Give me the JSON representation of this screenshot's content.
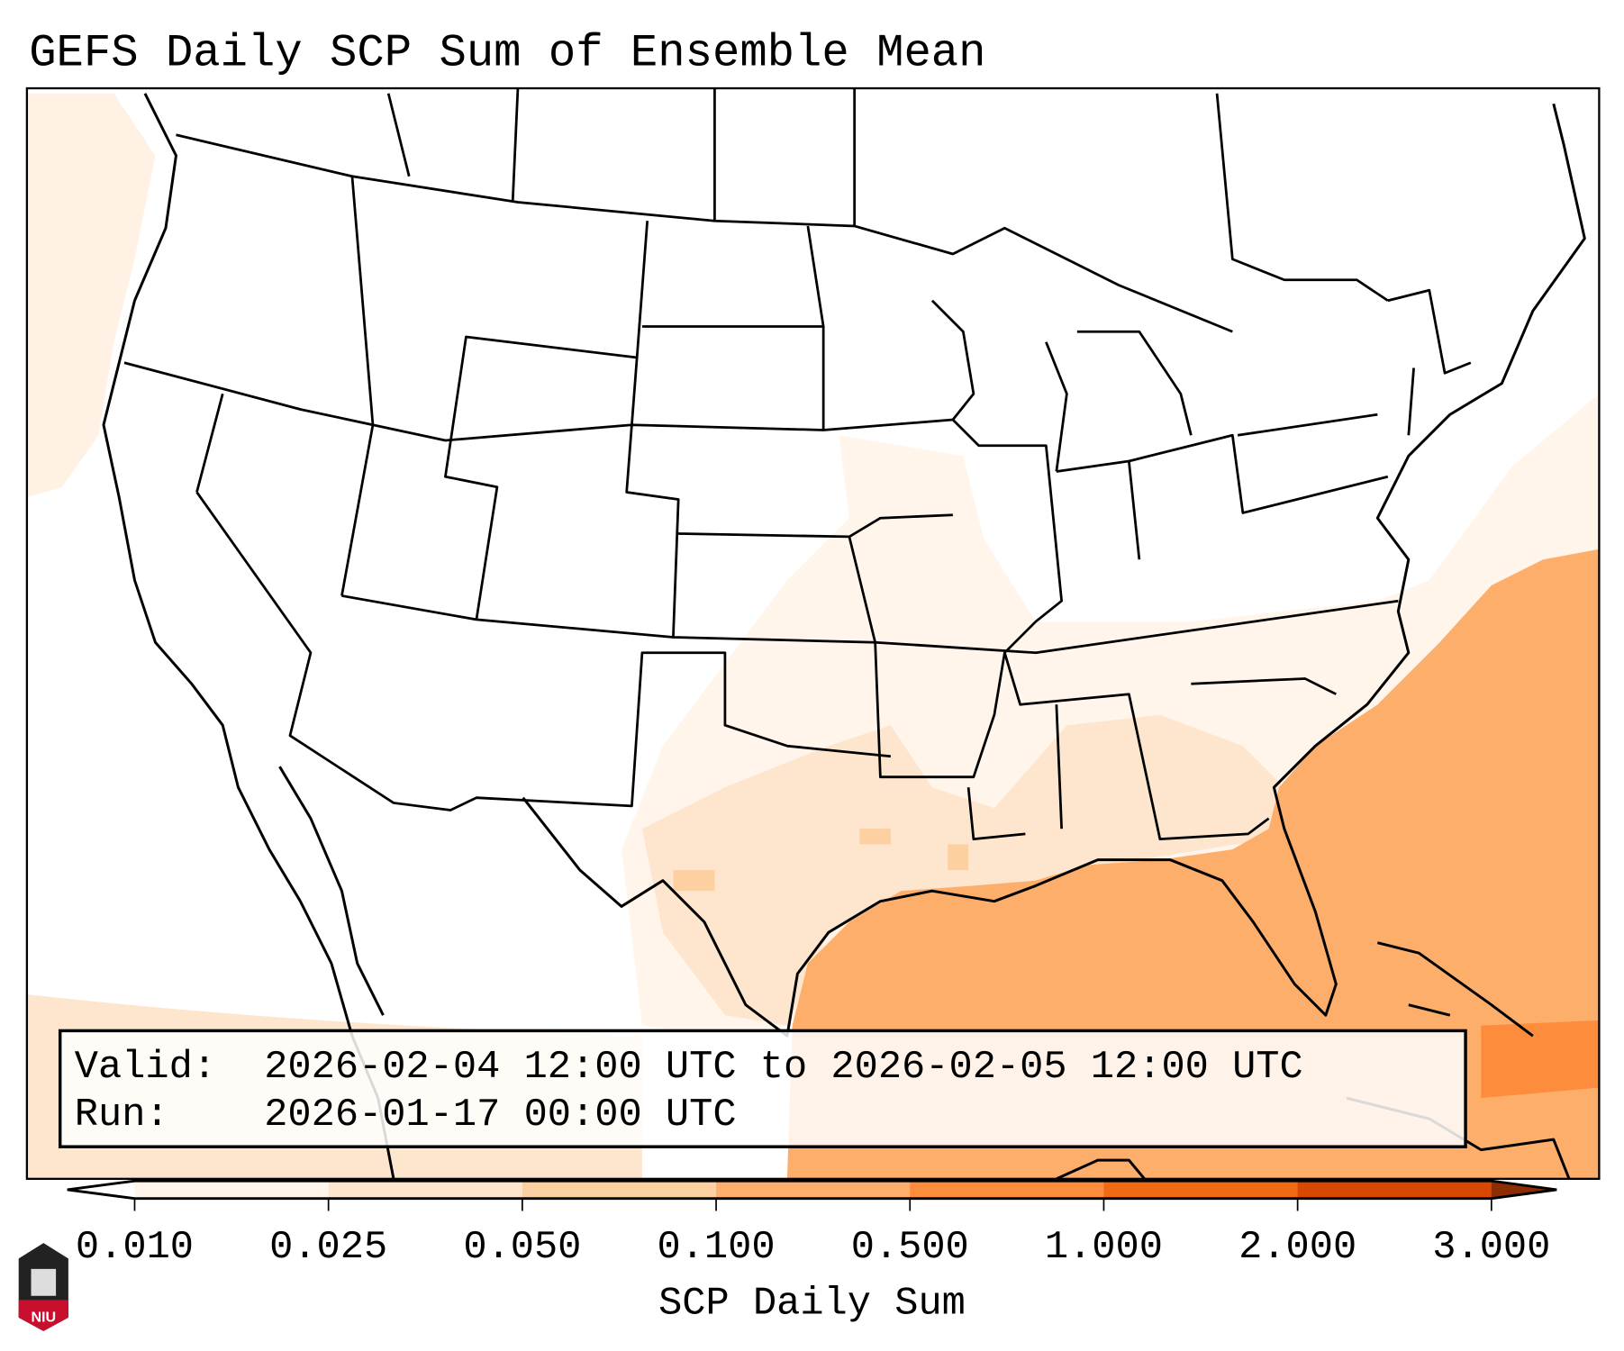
{
  "title": "GEFS Daily SCP Sum of Ensemble Mean",
  "info_box": {
    "valid_label": "Valid:",
    "valid_value": "2026-02-04 12:00 UTC to 2026-02-05 12:00 UTC",
    "run_label": "Run:",
    "run_value": "2026-01-17 00:00 UTC"
  },
  "colorbar": {
    "label": "SCP Daily Sum",
    "ticks": [
      "0.010",
      "0.025",
      "0.050",
      "0.100",
      "0.500",
      "1.000",
      "2.000",
      "3.000"
    ],
    "colors": [
      "#fff5eb",
      "#fee6ce",
      "#fdd0a2",
      "#fdae6b",
      "#fd8d3c",
      "#f16913",
      "#d94801",
      "#8c2d04"
    ],
    "under_color": "#ffffff"
  },
  "logo": {
    "text": "NIU"
  }
}
